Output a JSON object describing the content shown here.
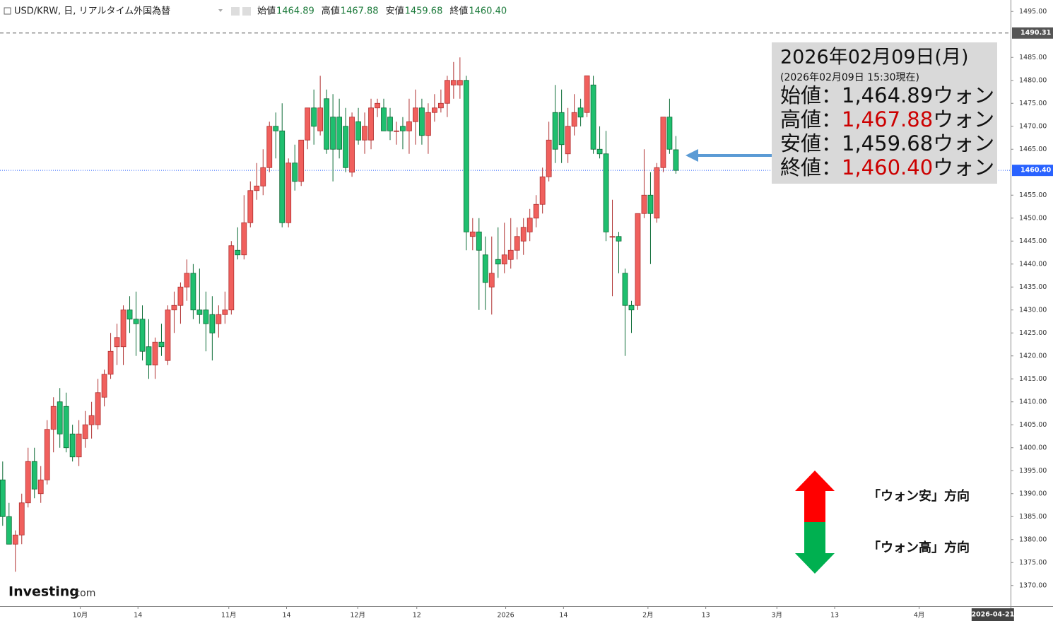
{
  "header": {
    "title": "USD/KRW, 日, リアルタイム外国為替",
    "items": [
      {
        "label": "始値",
        "value": "1464.89"
      },
      {
        "label": "高値",
        "value": "1467.88"
      },
      {
        "label": "安値",
        "value": "1459.68"
      },
      {
        "label": "終値",
        "value": "1460.40"
      }
    ]
  },
  "info_box": {
    "date": "2026年02月09日(月)",
    "note": "(2026年02月09日 15:30現在)",
    "rows": [
      {
        "label": "始値：",
        "value": "1,464.89",
        "unit": "ウォン",
        "color": "#111111"
      },
      {
        "label": "高値：",
        "value": "1,467.88",
        "unit": "ウォン",
        "color": "#cc0000"
      },
      {
        "label": "安値：",
        "value": "1,459.68",
        "unit": "ウォン",
        "color": "#111111"
      },
      {
        "label": "終値：",
        "value": "1,460.40",
        "unit": "ウォン",
        "color": "#cc0000"
      }
    ]
  },
  "direction_legend": {
    "up": "「ウォン安」方向",
    "down": "「ウォン高」方向"
  },
  "logo": {
    "name": "Investing",
    "suffix": ".com"
  },
  "chart_data": {
    "type": "candlestick",
    "up_color": "#f0605d",
    "down_color": "#1fbf6f",
    "open": [
      1393,
      1385,
      1379,
      1381,
      1388,
      1397,
      1390,
      1393,
      1404,
      1410,
      1409,
      1403,
      1398,
      1402,
      1405,
      1405,
      1411,
      1416,
      1422,
      1422,
      1430,
      1428,
      1428,
      1422,
      1418,
      1423,
      1419,
      1430,
      1431,
      1435,
      1438,
      1430,
      1430,
      1429,
      1427,
      1429,
      1430,
      1443,
      1442,
      1449,
      1456,
      1457,
      1461,
      1470,
      1469,
      1449,
      1462,
      1458,
      1467,
      1474,
      1469,
      1476,
      1472,
      1472,
      1470,
      1460,
      1471,
      1467,
      1467,
      1474,
      1474,
      1472,
      1469,
      1470,
      1469,
      1471,
      1474,
      1468,
      1473,
      1474,
      1475,
      1479,
      1479,
      1480,
      1446,
      1447,
      1442,
      1435,
      1441,
      1440,
      1441,
      1443,
      1445,
      1447,
      1450,
      1453,
      1459,
      1473,
      1473,
      1464,
      1470,
      1474,
      1473,
      1479,
      1465,
      1464,
      1446,
      1446,
      1438,
      1431,
      1431,
      1451,
      1455,
      1450,
      1461,
      1472,
      1464.89
    ],
    "high": [
      1397,
      1388,
      1382,
      1390,
      1400,
      1400,
      1396,
      1406,
      1411,
      1413,
      1412,
      1405,
      1406,
      1408,
      1410,
      1415,
      1417,
      1425,
      1427,
      1431,
      1433,
      1434,
      1431,
      1428,
      1424,
      1427,
      1431,
      1434,
      1436,
      1441,
      1440,
      1439,
      1434,
      1433,
      1431,
      1434,
      1445,
      1448,
      1455,
      1458,
      1462,
      1465,
      1471,
      1473,
      1475,
      1463,
      1466,
      1467,
      1474,
      1478,
      1481,
      1478,
      1477,
      1476,
      1474,
      1473,
      1474,
      1473,
      1476,
      1476,
      1476,
      1474,
      1471,
      1472,
      1476,
      1478,
      1476,
      1475,
      1477,
      1478,
      1481,
      1484,
      1485,
      1481,
      1450,
      1450,
      1446,
      1446,
      1448,
      1449,
      1450,
      1448,
      1450,
      1452,
      1455,
      1461,
      1471,
      1479,
      1478,
      1474,
      1477,
      1476,
      1481,
      1481,
      1470,
      1469,
      1454,
      1447,
      1439,
      1432,
      1451,
      1465,
      1460,
      1462,
      1472,
      1476,
      1467.88
    ],
    "low": [
      1383,
      1379,
      1373,
      1379,
      1387,
      1389,
      1388,
      1392,
      1399,
      1400,
      1399,
      1397,
      1396,
      1400,
      1402,
      1404,
      1409,
      1415,
      1418,
      1418,
      1425,
      1420,
      1419,
      1415,
      1415,
      1420,
      1418,
      1425,
      1427,
      1432,
      1428,
      1427,
      1421,
      1419,
      1424,
      1427,
      1429,
      1441,
      1441,
      1448,
      1454,
      1455,
      1460,
      1463,
      1448,
      1448,
      1456,
      1457,
      1465,
      1466,
      1468,
      1464,
      1458,
      1463,
      1460,
      1459,
      1466,
      1464,
      1465,
      1472,
      1469,
      1467,
      1466,
      1465,
      1464,
      1466,
      1466,
      1464,
      1471,
      1473,
      1472,
      1476,
      1476,
      1443,
      1443,
      1430,
      1430,
      1429,
      1437,
      1438,
      1439,
      1441,
      1442,
      1445,
      1448,
      1451,
      1458,
      1462,
      1462,
      1462,
      1468,
      1470,
      1472,
      1464,
      1463,
      1445,
      1433,
      1438,
      1420,
      1425,
      1430,
      1450,
      1440,
      1449,
      1460,
      1464,
      1459.68
    ],
    "close": [
      1385,
      1379,
      1381,
      1388,
      1397,
      1391,
      1393,
      1404,
      1409,
      1403,
      1400,
      1398,
      1403,
      1405,
      1407,
      1412,
      1416,
      1421,
      1424,
      1430,
      1428,
      1427,
      1421,
      1418,
      1423,
      1422,
      1430,
      1431,
      1435,
      1438,
      1430,
      1429,
      1427,
      1425,
      1429,
      1430,
      1444,
      1442,
      1449,
      1456,
      1457,
      1461,
      1470,
      1469,
      1449,
      1462,
      1458,
      1467,
      1474,
      1470,
      1474,
      1465,
      1465,
      1465,
      1461,
      1472,
      1467,
      1470,
      1474,
      1475,
      1469,
      1469,
      1469,
      1469,
      1471,
      1474,
      1468,
      1473,
      1474,
      1475,
      1480,
      1480,
      1480,
      1447,
      1447,
      1443,
      1436,
      1438,
      1440,
      1442,
      1443,
      1446,
      1448,
      1450,
      1453,
      1459,
      1467,
      1465,
      1466,
      1470,
      1473,
      1472,
      1481,
      1465,
      1464,
      1447,
      1446,
      1445,
      1431,
      1430,
      1451,
      1455,
      1451,
      1461,
      1472,
      1465,
      1460.4
    ],
    "xlim": [
      -0.2,
      158.7
    ],
    "xticks": [
      {
        "value": 12.2,
        "label": "10月"
      },
      {
        "value": 21.3,
        "label": "14"
      },
      {
        "value": 35.6,
        "label": "11月"
      },
      {
        "value": 44.7,
        "label": "14"
      },
      {
        "value": 55.9,
        "label": "12月"
      },
      {
        "value": 65.2,
        "label": "12"
      },
      {
        "value": 79.2,
        "label": "2026"
      },
      {
        "value": 88.3,
        "label": "14"
      },
      {
        "value": 101.6,
        "label": "2月"
      },
      {
        "value": 110.7,
        "label": "13"
      },
      {
        "value": 121.9,
        "label": "3月"
      },
      {
        "value": 131,
        "label": "13"
      },
      {
        "value": 144.3,
        "label": "4月"
      }
    ],
    "x_end_label": {
      "value": 155.9,
      "label": "2026-04-21"
    },
    "ylim": [
      1365.5,
      1497.5
    ],
    "yticks": [
      {
        "value": 1370,
        "label": "1370.00"
      },
      {
        "value": 1375,
        "label": "1375.00"
      },
      {
        "value": 1380,
        "label": "1380.00"
      },
      {
        "value": 1385,
        "label": "1385.00"
      },
      {
        "value": 1390,
        "label": "1390.00"
      },
      {
        "value": 1395,
        "label": "1395.00"
      },
      {
        "value": 1400,
        "label": "1400.00"
      },
      {
        "value": 1405,
        "label": "1405.00"
      },
      {
        "value": 1410,
        "label": "1410.00"
      },
      {
        "value": 1415,
        "label": "1415.00"
      },
      {
        "value": 1420,
        "label": "1420.00"
      },
      {
        "value": 1425,
        "label": "1425.00"
      },
      {
        "value": 1430,
        "label": "1430.00"
      },
      {
        "value": 1435,
        "label": "1435.00"
      },
      {
        "value": 1440,
        "label": "1440.00"
      },
      {
        "value": 1445,
        "label": "1445.00"
      },
      {
        "value": 1450,
        "label": "1450.00"
      },
      {
        "value": 1455,
        "label": "1455.00"
      },
      {
        "value": 1465,
        "label": "1465.00"
      },
      {
        "value": 1470,
        "label": "1470.00"
      },
      {
        "value": 1475,
        "label": "1475.00"
      },
      {
        "value": 1480,
        "label": "1480.00"
      },
      {
        "value": 1485,
        "label": "1485.00"
      },
      {
        "value": 1495,
        "label": "1495.00"
      }
    ],
    "price_lines": [
      {
        "value": 1490.31,
        "label": "1490.31",
        "style": "dashed",
        "color": "#555555"
      },
      {
        "value": 1460.4,
        "label": "1460.40",
        "style": "dotted",
        "color": "#2962ff"
      }
    ]
  }
}
